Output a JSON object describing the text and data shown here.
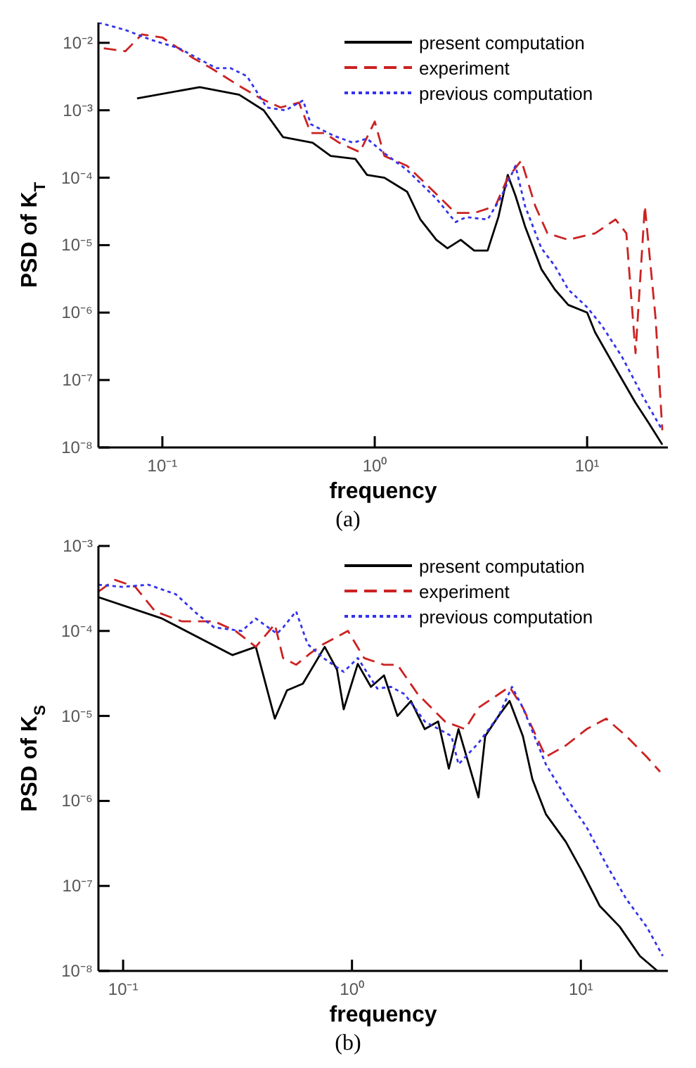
{
  "chart_data": [
    {
      "type": "line",
      "xlabel": "frequency",
      "ylabel": "PSD of K$_{T}$",
      "log": "xy",
      "legend": "top right",
      "grid": false,
      "xlim": [
        0.05,
        24
      ],
      "xticks": [
        {
          "value": 0.1,
          "label": "10⁻¹"
        },
        {
          "value": 1,
          "label": "10⁰"
        },
        {
          "value": 10,
          "label": "10¹"
        }
      ],
      "ylim": [
        1e-08,
        0.02
      ],
      "yticks": [
        {
          "value": 1e-08,
          "label": "10⁻⁸"
        },
        {
          "value": 1e-07,
          "label": "10⁻⁷"
        },
        {
          "value": 1e-06,
          "label": "10⁻⁶"
        },
        {
          "value": 1e-05,
          "label": "10⁻⁵"
        },
        {
          "value": 0.0001,
          "label": "10⁻⁴"
        },
        {
          "value": 0.001,
          "label": "10⁻³"
        },
        {
          "value": 0.01,
          "label": "10⁻²"
        }
      ],
      "annotations": [
        "(a)"
      ],
      "series": [
        {
          "name": "present computation",
          "color": "#000000",
          "line_style": "solid",
          "x": [
            0.076,
            0.15,
            0.23,
            0.3,
            0.37,
            0.51,
            0.62,
            0.81,
            0.92,
            1.11,
            1.42,
            1.64,
            1.95,
            2.2,
            2.54,
            2.94,
            3.4,
            3.82,
            4.23,
            4.6,
            5.1,
            6.09,
            7.05,
            8.15,
            10,
            10.9,
            13.6,
            16.9,
            19.5,
            22.6
          ],
          "values": [
            0.0015,
            0.0022,
            0.0017,
            0.001,
            0.0004,
            0.00033,
            0.00021,
            0.00019,
            0.00011,
            0.0001,
            6.2e-05,
            2.4e-05,
            1.2e-05,
            9e-06,
            1.2e-05,
            8.3e-06,
            8.3e-06,
            2.6e-05,
            0.00011,
            5.4e-05,
            1.9e-05,
            4.4e-06,
            2.2e-06,
            1.3e-06,
            1e-06,
            5.1e-07,
            1.5e-07,
            4.6e-08,
            2.3e-08,
            1.1e-08
          ]
        },
        {
          "name": "experiment",
          "color": "#cc2222",
          "line_style": "dashed",
          "x": [
            0.053,
            0.067,
            0.08,
            0.1,
            0.14,
            0.17,
            0.23,
            0.29,
            0.36,
            0.44,
            0.5,
            0.58,
            0.68,
            0.85,
            1,
            1.11,
            1.42,
            1.9,
            2.4,
            2.94,
            3.7,
            4.23,
            4.9,
            5.7,
            6.5,
            8.15,
            10.9,
            13.6,
            15.3,
            16.9,
            18.7,
            21,
            22.6
          ],
          "values": [
            0.0083,
            0.0075,
            0.0133,
            0.012,
            0.0059,
            0.0042,
            0.0023,
            0.0015,
            0.0011,
            0.0013,
            0.00046,
            0.00046,
            0.00033,
            0.00024,
            0.00068,
            0.00021,
            0.00015,
            6.2e-05,
            3e-05,
            3e-05,
            3.8e-05,
            0.0001,
            0.00018,
            3.8e-05,
            1.5e-05,
            1.2e-05,
            1.5e-05,
            2.4e-05,
            1.5e-05,
            2.5e-07,
            3.8e-05,
            8.3e-07,
            1.8e-08
          ]
        },
        {
          "name": "previous computation",
          "color": "#3333ee",
          "line_style": "dotted",
          "x": [
            0.05,
            0.067,
            0.089,
            0.12,
            0.16,
            0.18,
            0.21,
            0.25,
            0.31,
            0.38,
            0.46,
            0.5,
            0.64,
            0.79,
            0.92,
            1.11,
            1.42,
            1.95,
            2.4,
            2.7,
            3.4,
            3.9,
            4.6,
            5.1,
            6.09,
            7.05,
            8.15,
            10,
            11.7,
            14.6,
            18.2,
            22.6
          ],
          "values": [
            0.02,
            0.0155,
            0.011,
            0.0083,
            0.0051,
            0.0042,
            0.0042,
            0.0032,
            0.0011,
            0.001,
            0.0014,
            0.00062,
            0.00042,
            0.00033,
            0.00038,
            0.00023,
            0.00013,
            4.9e-05,
            2.2e-05,
            2.6e-05,
            2.4e-05,
            4.9e-05,
            0.00015,
            3.8e-05,
            9e-06,
            4.9e-06,
            2.2e-06,
            1.2e-06,
            6.5e-07,
            2.2e-07,
            5.9e-08,
            1.8e-08
          ]
        }
      ]
    },
    {
      "type": "line",
      "xlabel": "frequency",
      "ylabel": "PSD of K$_{S}$",
      "log": "xy",
      "legend": "top right",
      "grid": false,
      "xlim": [
        0.078,
        24
      ],
      "xticks": [
        {
          "value": 0.1,
          "label": "10⁻¹"
        },
        {
          "value": 1,
          "label": "10⁰"
        },
        {
          "value": 10,
          "label": "10¹"
        }
      ],
      "ylim": [
        1e-08,
        0.001
      ],
      "yticks": [
        {
          "value": 1e-08,
          "label": "10⁻⁸"
        },
        {
          "value": 1e-07,
          "label": "10⁻⁷"
        },
        {
          "value": 1e-06,
          "label": "10⁻⁶"
        },
        {
          "value": 1e-05,
          "label": "10⁻⁵"
        },
        {
          "value": 0.0001,
          "label": "10⁻⁴"
        },
        {
          "value": 0.001,
          "label": "10⁻³"
        }
      ],
      "annotations": [
        "(b)"
      ],
      "series": [
        {
          "name": "present computation",
          "color": "#000000",
          "line_style": "solid",
          "x": [
            0.078,
            0.148,
            0.3,
            0.38,
            0.46,
            0.52,
            0.61,
            0.76,
            0.86,
            0.92,
            1.06,
            1.21,
            1.38,
            1.58,
            1.81,
            2.08,
            2.38,
            2.65,
            2.92,
            3.57,
            3.82,
            4.37,
            4.88,
            5.58,
            6.14,
            7.03,
            8.6,
            10.1,
            12.1,
            14.8,
            18.1,
            21.6
          ],
          "values": [
            0.00025,
            0.00014,
            5.2e-05,
            6.5e-05,
            9.3e-06,
            2e-05,
            2.4e-05,
            6.5e-05,
            3.5e-05,
            1.2e-05,
            4.1e-05,
            2.2e-05,
            3e-05,
            1e-05,
            1.5e-05,
            7e-06,
            8.6e-06,
            2.4e-06,
            7e-06,
            1.1e-06,
            5.8e-06,
            1e-05,
            1.5e-05,
            5.8e-06,
            1.8e-06,
            7e-07,
            3.3e-07,
            1.5e-07,
            5.8e-08,
            3.3e-08,
            1.5e-08,
            1e-08
          ]
        },
        {
          "name": "experiment",
          "color": "#cc2222",
          "line_style": "dashed",
          "x": [
            0.078,
            0.092,
            0.113,
            0.138,
            0.18,
            0.22,
            0.25,
            0.31,
            0.38,
            0.46,
            0.5,
            0.57,
            0.66,
            0.75,
            0.96,
            1.13,
            1.38,
            1.58,
            1.94,
            2.55,
            3.12,
            3.57,
            4.37,
            4.88,
            5.58,
            7.03,
            8.6,
            10.6,
            12.9,
            15.8,
            19.4,
            22.2
          ],
          "values": [
            0.00029,
            0.0004,
            0.00033,
            0.00017,
            0.00013,
            0.00013,
            0.00013,
            0.0001,
            6.5e-05,
            0.00012,
            4.8e-05,
            4e-05,
            5.5e-05,
            7e-05,
            0.0001,
            4.8e-05,
            4e-05,
            4e-05,
            1.8e-05,
            8.6e-06,
            7e-06,
            1.25e-05,
            1.8e-05,
            2.2e-05,
            1.25e-05,
            3.3e-06,
            4.5e-06,
            7e-06,
            9.3e-06,
            5.8e-06,
            3.3e-06,
            2.2e-06
          ]
        },
        {
          "name": "previous computation",
          "color": "#3333ee",
          "line_style": "dotted",
          "x": [
            0.078,
            0.099,
            0.129,
            0.17,
            0.21,
            0.25,
            0.33,
            0.38,
            0.47,
            0.5,
            0.57,
            0.64,
            0.75,
            0.92,
            1.06,
            1.29,
            1.48,
            1.7,
            2.08,
            2.72,
            2.92,
            3.57,
            4.37,
            5,
            5.58,
            7.03,
            8.6,
            10.6,
            12.9,
            15.8,
            19.4,
            22.8
          ],
          "values": [
            0.00035,
            0.00033,
            0.00035,
            0.00027,
            0.00016,
            0.00011,
            0.0001,
            0.00014,
            9.3e-05,
            0.00011,
            0.00017,
            7e-05,
            4.8e-05,
            3.3e-05,
            4.8e-05,
            2.1e-05,
            2.2e-05,
            1.8e-05,
            8.6e-06,
            5.8e-06,
            2.7e-06,
            4.8e-06,
            1e-05,
            2.2e-05,
            1.25e-05,
            2.7e-06,
            1.1e-06,
            4.9e-07,
            1.8e-07,
            7e-08,
            3.3e-08,
            1.5e-08
          ]
        }
      ]
    }
  ]
}
